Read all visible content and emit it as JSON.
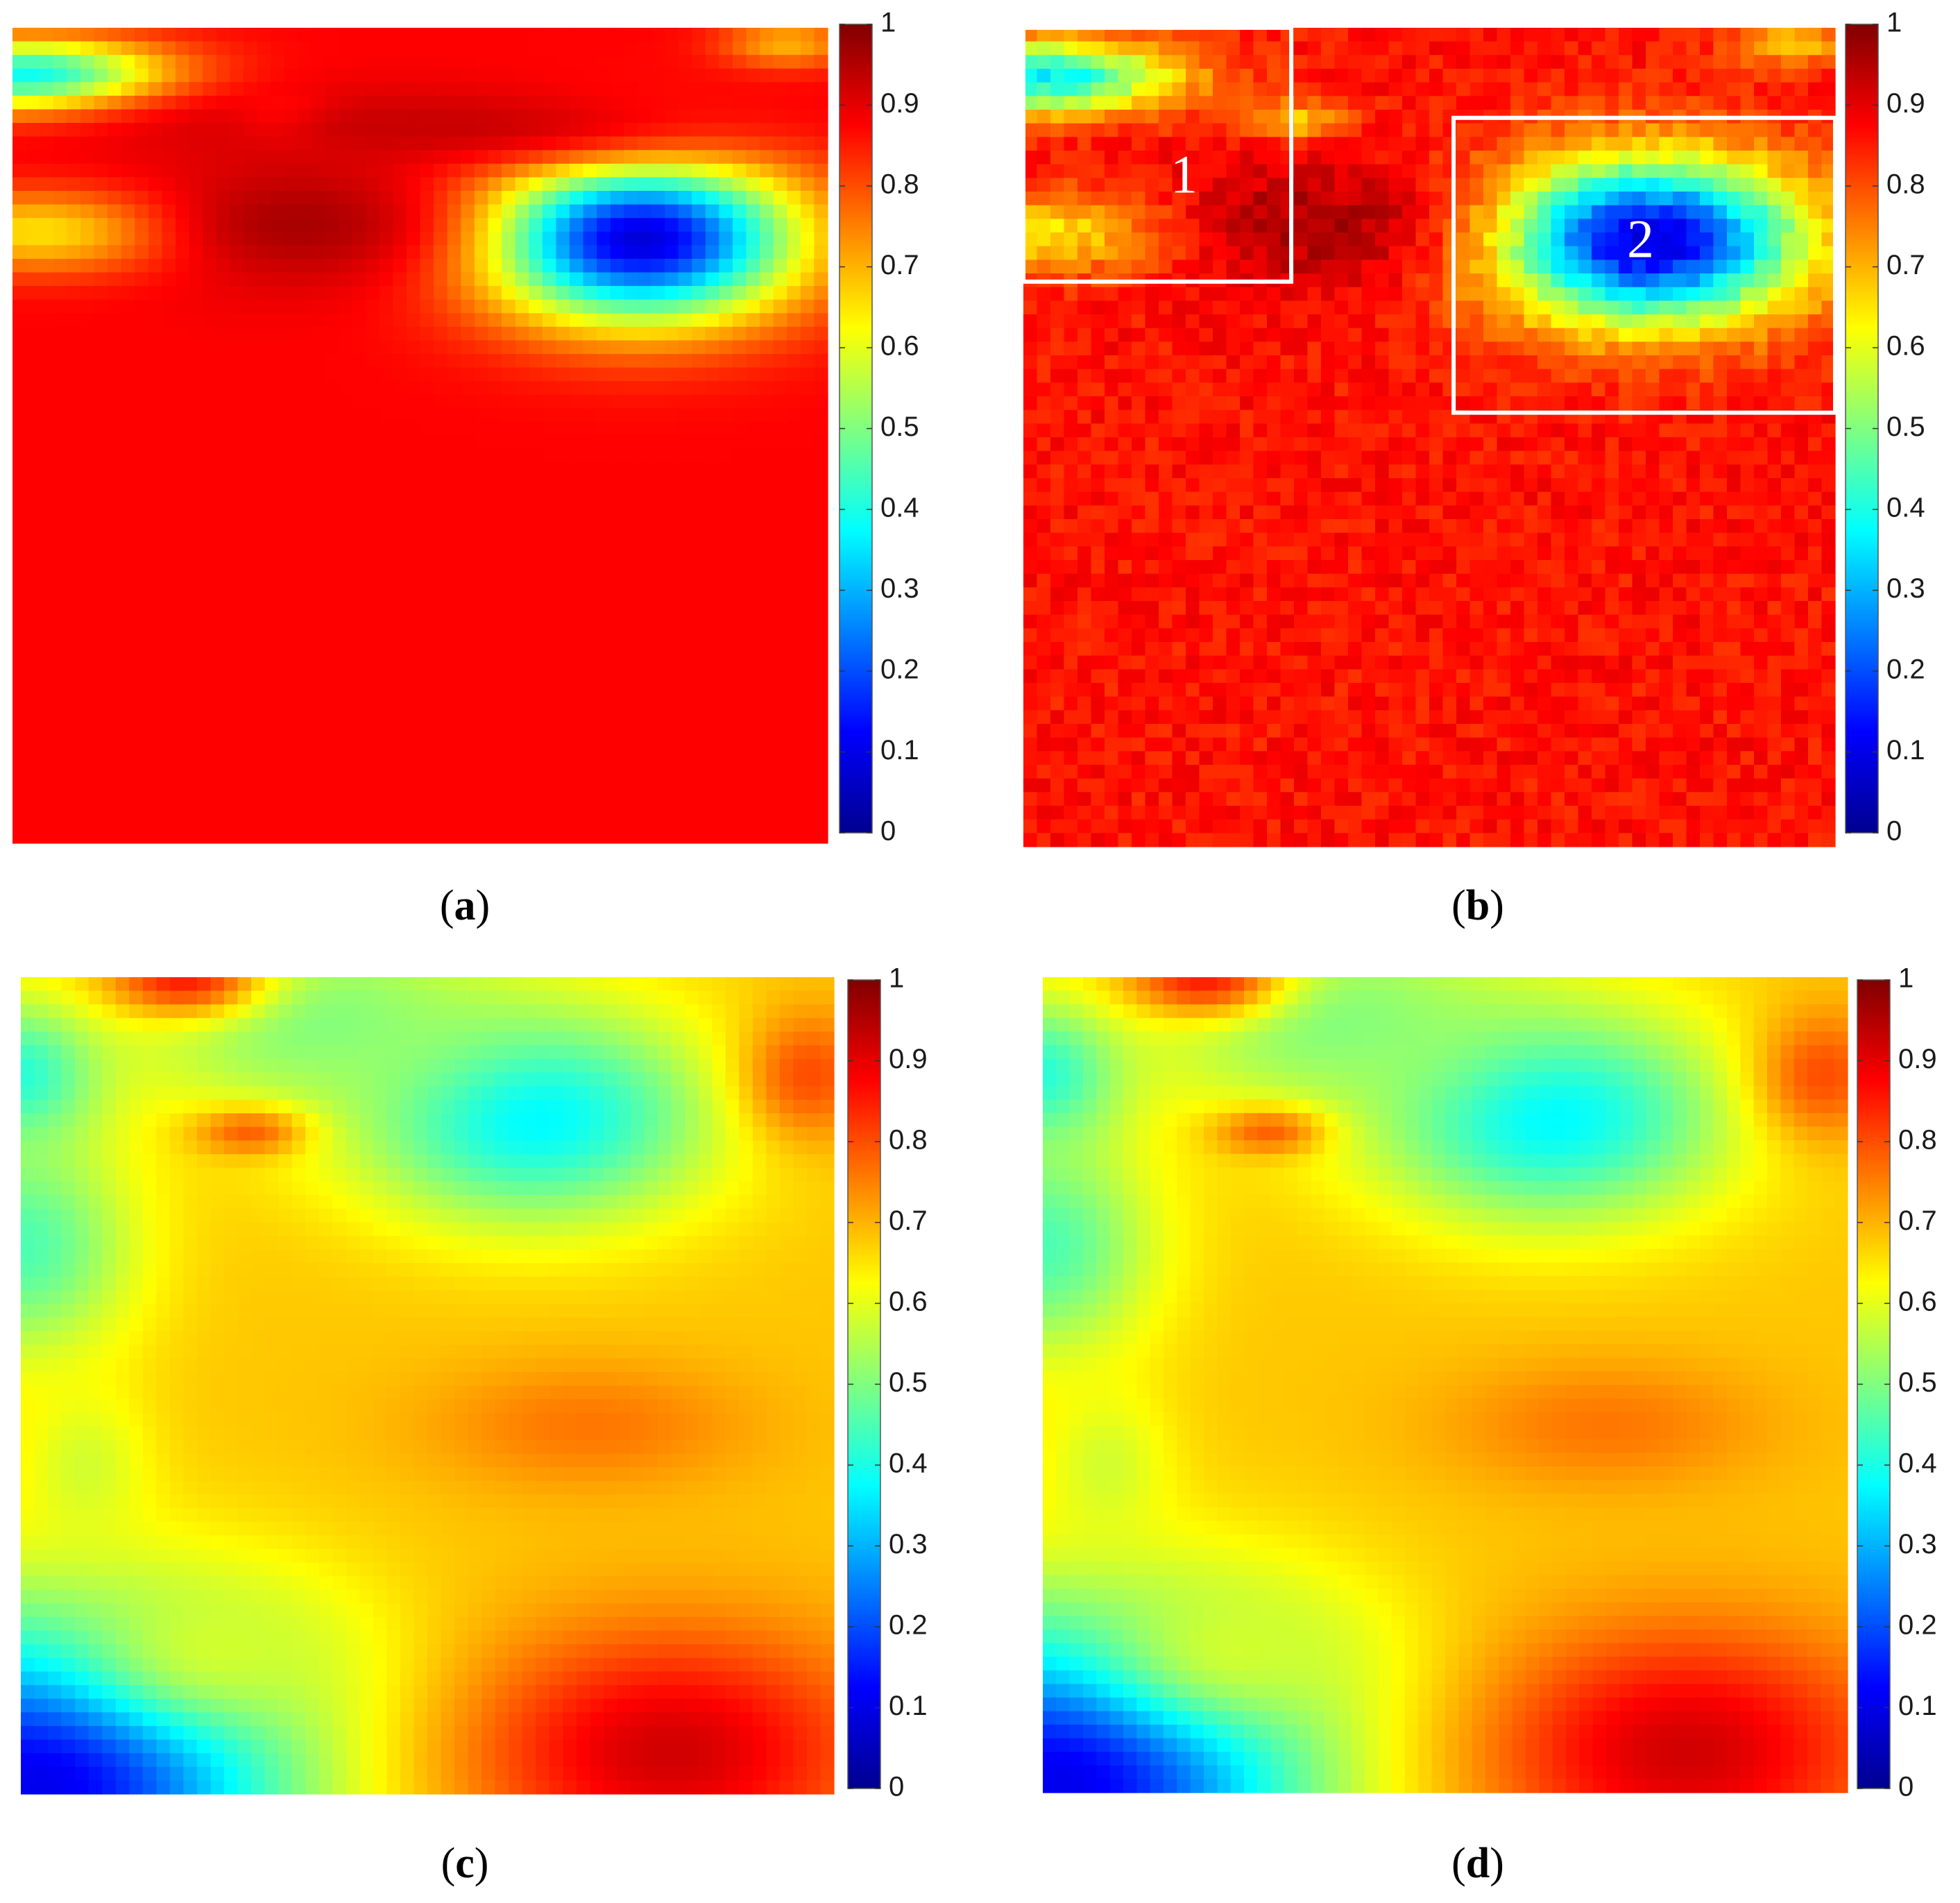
{
  "colormap": {
    "name": "jet",
    "stops": [
      "#00008f",
      "#0000ff",
      "#0080ff",
      "#00ffff",
      "#80ff80",
      "#ffff00",
      "#ff8000",
      "#ff0000",
      "#800000"
    ]
  },
  "annotation_color": "#ffffff",
  "chart_data": [
    {
      "type": "heatmap",
      "panel": "a",
      "caption_letter": "a",
      "colorbar": {
        "range": [
          0,
          1
        ],
        "ticks": [
          "0",
          "0.1",
          "0.2",
          "0.3",
          "0.4",
          "0.5",
          "0.6",
          "0.7",
          "0.8",
          "0.9",
          "1"
        ]
      },
      "base_value": 0.875,
      "features": [
        {
          "x": 0.77,
          "y": 0.26,
          "rx": 0.19,
          "ry": 0.1,
          "value": 0.08
        },
        {
          "x": 0.02,
          "y": 0.06,
          "rx": 0.17,
          "ry": 0.045,
          "value": 0.36
        },
        {
          "x": 0.05,
          "y": 0.25,
          "rx": 0.18,
          "ry": 0.05,
          "value": 0.64
        },
        {
          "x": 0.34,
          "y": 0.115,
          "rx": 0.06,
          "ry": 0.025,
          "value": 0.65
        },
        {
          "x": 0.95,
          "y": 0.02,
          "rx": 0.08,
          "ry": 0.03,
          "value": 0.7
        },
        {
          "x": 0.35,
          "y": 0.24,
          "rx": 0.18,
          "ry": 0.08,
          "value": 0.96
        },
        {
          "x": 0.5,
          "y": 0.12,
          "rx": 0.4,
          "ry": 0.05,
          "value": 0.93
        }
      ],
      "boxes": []
    },
    {
      "type": "heatmap",
      "panel": "b",
      "caption_letter": "b",
      "colorbar": {
        "range": [
          0,
          1
        ],
        "ticks": [
          "0",
          "0.1",
          "0.2",
          "0.3",
          "0.4",
          "0.5",
          "0.6",
          "0.7",
          "0.8",
          "0.9",
          "1"
        ]
      },
      "base_value": 0.86,
      "noise": 0.035,
      "features": [
        {
          "x": 0.77,
          "y": 0.26,
          "rx": 0.19,
          "ry": 0.1,
          "value": 0.08
        },
        {
          "x": 0.02,
          "y": 0.06,
          "rx": 0.17,
          "ry": 0.045,
          "value": 0.36
        },
        {
          "x": 0.05,
          "y": 0.25,
          "rx": 0.18,
          "ry": 0.05,
          "value": 0.64
        },
        {
          "x": 0.34,
          "y": 0.115,
          "rx": 0.06,
          "ry": 0.025,
          "value": 0.65
        },
        {
          "x": 0.95,
          "y": 0.02,
          "rx": 0.08,
          "ry": 0.03,
          "value": 0.7
        },
        {
          "x": 0.35,
          "y": 0.24,
          "rx": 0.18,
          "ry": 0.08,
          "value": 0.96
        }
      ],
      "boxes": [
        {
          "label": "1",
          "x0": 0.0,
          "y0": 0.0,
          "x1": 0.33,
          "y1": 0.31
        },
        {
          "label": "2",
          "x0": 0.53,
          "y0": 0.11,
          "x1": 1.0,
          "y1": 0.47
        }
      ]
    },
    {
      "type": "heatmap",
      "panel": "c",
      "caption_letter": "c",
      "colorbar": {
        "range": [
          0,
          1
        ],
        "ticks": [
          "0",
          "0.1",
          "0.2",
          "0.3",
          "0.4",
          "0.5",
          "0.6",
          "0.7",
          "0.8",
          "0.9",
          "1"
        ]
      },
      "base_value": 0.68,
      "features": [
        {
          "x": 0.63,
          "y": 0.17,
          "rx": 0.22,
          "ry": 0.13,
          "value": 0.36
        },
        {
          "x": 0.0,
          "y": 0.12,
          "rx": 0.1,
          "ry": 0.09,
          "value": 0.4
        },
        {
          "x": 0.0,
          "y": 0.33,
          "rx": 0.14,
          "ry": 0.14,
          "value": 0.45
        },
        {
          "x": 0.03,
          "y": 0.98,
          "rx": 0.3,
          "ry": 0.2,
          "value": 0.1
        },
        {
          "x": 0.35,
          "y": 0.05,
          "rx": 0.25,
          "ry": 0.12,
          "value": 0.5
        },
        {
          "x": 0.2,
          "y": 0.0,
          "rx": 0.1,
          "ry": 0.05,
          "value": 0.85
        },
        {
          "x": 0.97,
          "y": 0.12,
          "rx": 0.08,
          "ry": 0.08,
          "value": 0.8
        },
        {
          "x": 0.28,
          "y": 0.19,
          "rx": 0.07,
          "ry": 0.03,
          "value": 0.78
        },
        {
          "x": 0.8,
          "y": 0.95,
          "rx": 0.25,
          "ry": 0.15,
          "value": 0.92
        },
        {
          "x": 0.7,
          "y": 0.55,
          "rx": 0.2,
          "ry": 0.08,
          "value": 0.76
        },
        {
          "x": 0.25,
          "y": 0.82,
          "rx": 0.18,
          "ry": 0.1,
          "value": 0.58
        },
        {
          "x": 0.08,
          "y": 0.6,
          "rx": 0.08,
          "ry": 0.1,
          "value": 0.58
        }
      ],
      "boxes": []
    },
    {
      "type": "heatmap",
      "panel": "d",
      "caption_letter": "d",
      "colorbar": {
        "range": [
          0,
          1
        ],
        "ticks": [
          "0",
          "0.1",
          "0.2",
          "0.3",
          "0.4",
          "0.5",
          "0.6",
          "0.7",
          "0.8",
          "0.9",
          "1"
        ]
      },
      "base_value": 0.68,
      "features": [
        {
          "x": 0.63,
          "y": 0.17,
          "rx": 0.22,
          "ry": 0.13,
          "value": 0.36
        },
        {
          "x": 0.0,
          "y": 0.12,
          "rx": 0.1,
          "ry": 0.09,
          "value": 0.4
        },
        {
          "x": 0.0,
          "y": 0.33,
          "rx": 0.14,
          "ry": 0.14,
          "value": 0.45
        },
        {
          "x": 0.03,
          "y": 0.98,
          "rx": 0.3,
          "ry": 0.2,
          "value": 0.1
        },
        {
          "x": 0.35,
          "y": 0.05,
          "rx": 0.25,
          "ry": 0.12,
          "value": 0.5
        },
        {
          "x": 0.2,
          "y": 0.0,
          "rx": 0.1,
          "ry": 0.05,
          "value": 0.85
        },
        {
          "x": 0.97,
          "y": 0.12,
          "rx": 0.08,
          "ry": 0.08,
          "value": 0.8
        },
        {
          "x": 0.28,
          "y": 0.19,
          "rx": 0.07,
          "ry": 0.03,
          "value": 0.78
        },
        {
          "x": 0.8,
          "y": 0.95,
          "rx": 0.25,
          "ry": 0.15,
          "value": 0.92
        },
        {
          "x": 0.7,
          "y": 0.55,
          "rx": 0.2,
          "ry": 0.08,
          "value": 0.76
        },
        {
          "x": 0.25,
          "y": 0.82,
          "rx": 0.18,
          "ry": 0.1,
          "value": 0.58
        },
        {
          "x": 0.08,
          "y": 0.6,
          "rx": 0.08,
          "ry": 0.1,
          "value": 0.58
        }
      ],
      "boxes": []
    }
  ]
}
